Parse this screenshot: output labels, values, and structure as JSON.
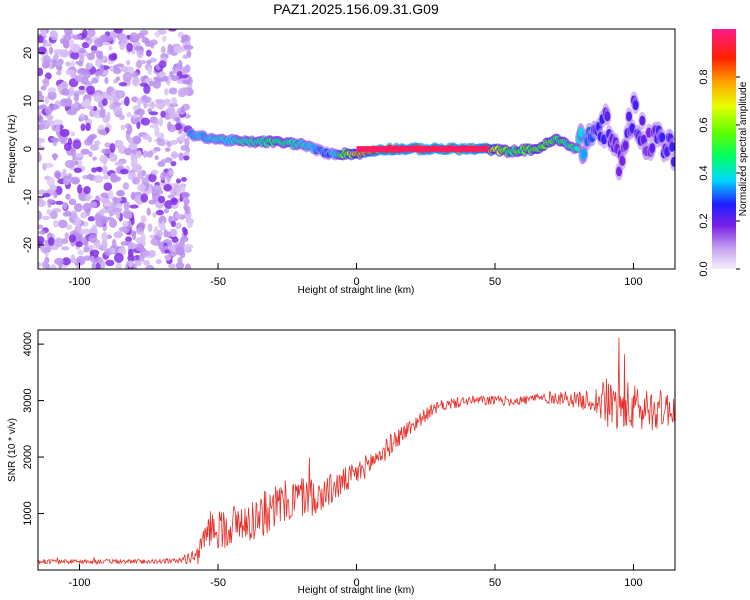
{
  "title": "PAZ1.2025.156.09.31.G09",
  "chart_data": [
    {
      "type": "heatmap",
      "xlabel": "Height of straight line (km)",
      "ylabel": "Frequency (Hz)",
      "xlim": [
        -115,
        115
      ],
      "ylim": [
        -25,
        25
      ],
      "xticks": [
        -100,
        -50,
        0,
        50,
        100
      ],
      "yticks": [
        -20,
        -10,
        0,
        10,
        20
      ],
      "noise_region_x": [
        -115,
        -60
      ],
      "ridge": {
        "x": [
          -60,
          -50,
          -40,
          -30,
          -20,
          -10,
          0,
          10,
          20,
          30,
          40,
          47,
          55,
          65,
          72,
          80,
          85,
          90,
          95,
          100,
          105,
          110,
          115
        ],
        "freq": [
          3,
          2,
          1.5,
          1.5,
          1,
          -1,
          -1,
          0,
          0,
          0,
          0,
          0,
          -0.5,
          0,
          2,
          0,
          3,
          5,
          -3,
          8,
          1,
          3,
          -2
        ],
        "amplitude": [
          0.35,
          0.4,
          0.45,
          0.5,
          0.45,
          0.3,
          0.8,
          0.95,
          0.95,
          0.95,
          0.95,
          0.9,
          0.5,
          0.6,
          0.55,
          0.45,
          0.3,
          0.25,
          0.2,
          0.25,
          0.2,
          0.25,
          0.25
        ]
      },
      "colorbar": {
        "label": "Normalized spectral amplitude",
        "ticks": [
          "0.0",
          "0.2",
          "0.4",
          "0.6",
          "0.8"
        ],
        "range": [
          0,
          1
        ]
      }
    },
    {
      "type": "line",
      "xlabel": "Height of straight line (km)",
      "ylabel": "SNR (10 * v/v)",
      "xlim": [
        -115,
        115
      ],
      "ylim": [
        0,
        4250
      ],
      "xticks": [
        -100,
        -50,
        0,
        50,
        100
      ],
      "yticks": [
        1000,
        2000,
        3000,
        4000
      ],
      "color": "#e8302a",
      "series": [
        {
          "x": [
            -115,
            -100,
            -80,
            -65,
            -57,
            -55,
            -52,
            -50,
            -45,
            -40,
            -35,
            -30,
            -25,
            -20,
            -15,
            -10,
            -5,
            0,
            5,
            10,
            15,
            20,
            25,
            30,
            35,
            40,
            45,
            50,
            55,
            60,
            65,
            70,
            75,
            80,
            85,
            90,
            95,
            100,
            105,
            110,
            115
          ],
          "mean": [
            150,
            150,
            150,
            160,
            250,
            600,
            800,
            700,
            800,
            850,
            950,
            1100,
            1200,
            1300,
            1300,
            1400,
            1550,
            1700,
            1900,
            2100,
            2350,
            2550,
            2750,
            2900,
            2950,
            3000,
            3000,
            3000,
            3000,
            3000,
            3050,
            3050,
            3050,
            3000,
            3000,
            2950,
            2900,
            2850,
            2850,
            2850,
            2850
          ],
          "noise": [
            40,
            40,
            40,
            40,
            150,
            300,
            350,
            350,
            380,
            380,
            400,
            400,
            400,
            380,
            350,
            300,
            250,
            220,
            200,
            200,
            180,
            150,
            120,
            100,
            100,
            90,
            90,
            90,
            90,
            90,
            100,
            110,
            130,
            150,
            200,
            450,
            500,
            450,
            400,
            350,
            300
          ]
        }
      ]
    }
  ]
}
